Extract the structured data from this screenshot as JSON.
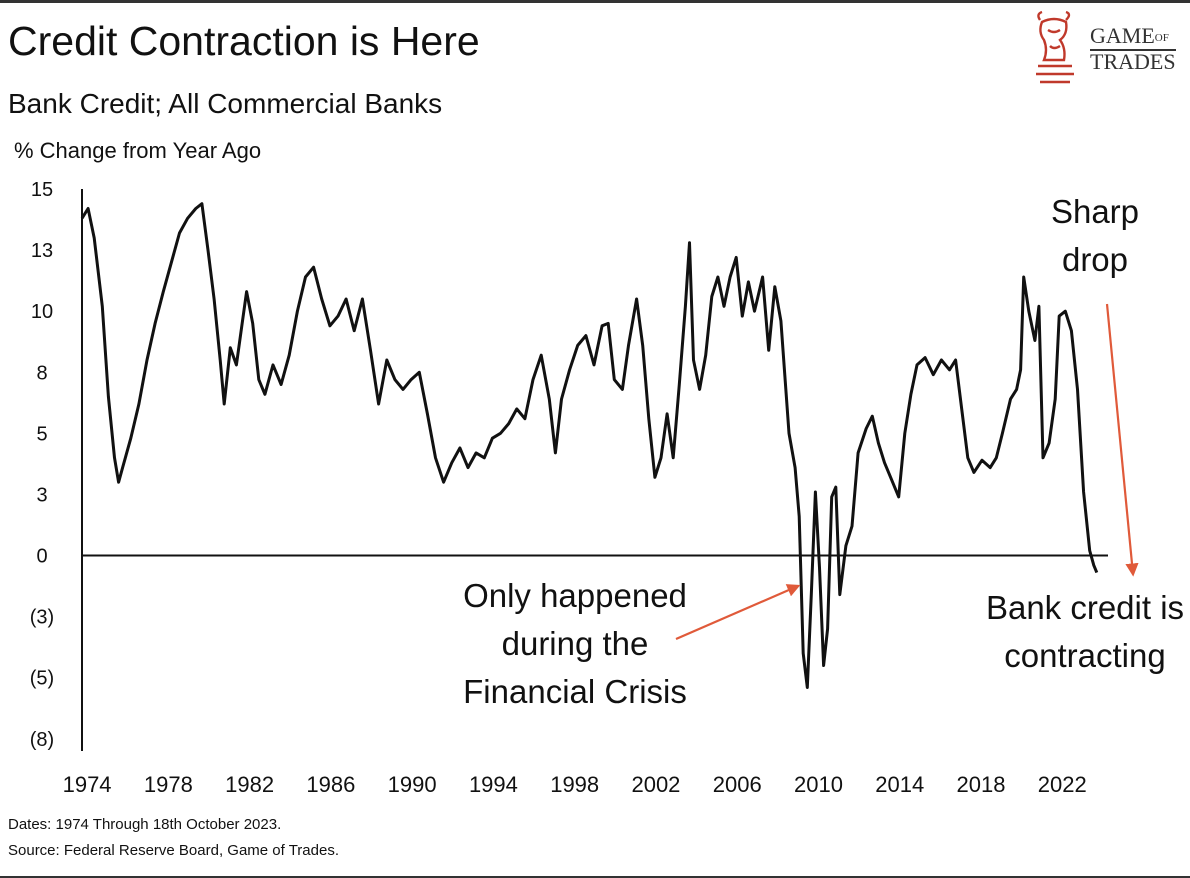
{
  "logo": {
    "line1": "GAME",
    "of": "OF",
    "line2": "TRADES",
    "color": "#c0392b"
  },
  "notes": {
    "dates": "Dates: 1974 Through 18th October 2023.",
    "source": "Source: Federal Reserve Board, Game of Trades."
  },
  "annotations": {
    "crisis": [
      "Only happened",
      "during the",
      "Financial Crisis"
    ],
    "drop": [
      "Sharp",
      "drop"
    ],
    "contract": [
      "Bank credit is",
      "contracting"
    ],
    "arrow_color": "#e05a3a"
  },
  "chart_data": {
    "type": "line",
    "title": "Credit Contraction is Here",
    "subtitle": "Bank Credit; All Commercial Banks",
    "ylabel": "% Change from Year Ago",
    "xlabel": "",
    "ylim": [
      -8,
      15
    ],
    "xlim": [
      1974,
      2024.5
    ],
    "yticks": [
      {
        "value": 15,
        "label": "15"
      },
      {
        "value": 12.5,
        "label": "13"
      },
      {
        "value": 10,
        "label": "10"
      },
      {
        "value": 7.5,
        "label": "8"
      },
      {
        "value": 5,
        "label": "5"
      },
      {
        "value": 2.5,
        "label": "3"
      },
      {
        "value": 0,
        "label": "0"
      },
      {
        "value": -2.5,
        "label": "(3)"
      },
      {
        "value": -5,
        "label": "(5)"
      },
      {
        "value": -7.5,
        "label": "(8)"
      }
    ],
    "xticks": [
      1974,
      1978,
      1982,
      1986,
      1990,
      1994,
      1998,
      2002,
      2006,
      2010,
      2014,
      2018,
      2022
    ],
    "grid": false,
    "series": [
      {
        "color": "#111111",
        "points": [
          [
            1974.0,
            13.8
          ],
          [
            1974.3,
            14.2
          ],
          [
            1974.6,
            13.0
          ],
          [
            1975.0,
            10.2
          ],
          [
            1975.3,
            6.5
          ],
          [
            1975.6,
            4.0
          ],
          [
            1975.8,
            3.0
          ],
          [
            1976.0,
            3.6
          ],
          [
            1976.4,
            4.8
          ],
          [
            1976.8,
            6.2
          ],
          [
            1977.2,
            8.0
          ],
          [
            1977.6,
            9.5
          ],
          [
            1978.0,
            10.8
          ],
          [
            1978.4,
            12.0
          ],
          [
            1978.8,
            13.2
          ],
          [
            1979.2,
            13.8
          ],
          [
            1979.6,
            14.2
          ],
          [
            1979.9,
            14.4
          ],
          [
            1980.2,
            12.5
          ],
          [
            1980.5,
            10.5
          ],
          [
            1980.8,
            8.0
          ],
          [
            1981.0,
            6.2
          ],
          [
            1981.3,
            8.5
          ],
          [
            1981.6,
            7.8
          ],
          [
            1981.9,
            9.6
          ],
          [
            1982.1,
            10.8
          ],
          [
            1982.4,
            9.5
          ],
          [
            1982.7,
            7.2
          ],
          [
            1983.0,
            6.6
          ],
          [
            1983.4,
            7.8
          ],
          [
            1983.8,
            7.0
          ],
          [
            1984.2,
            8.2
          ],
          [
            1984.6,
            10.0
          ],
          [
            1985.0,
            11.4
          ],
          [
            1985.4,
            11.8
          ],
          [
            1985.8,
            10.5
          ],
          [
            1986.2,
            9.4
          ],
          [
            1986.6,
            9.8
          ],
          [
            1987.0,
            10.5
          ],
          [
            1987.4,
            9.2
          ],
          [
            1987.8,
            10.5
          ],
          [
            1988.2,
            8.4
          ],
          [
            1988.6,
            6.2
          ],
          [
            1989.0,
            8.0
          ],
          [
            1989.4,
            7.2
          ],
          [
            1989.8,
            6.8
          ],
          [
            1990.2,
            7.2
          ],
          [
            1990.6,
            7.5
          ],
          [
            1991.0,
            5.8
          ],
          [
            1991.4,
            4.0
          ],
          [
            1991.8,
            3.0
          ],
          [
            1992.2,
            3.8
          ],
          [
            1992.6,
            4.4
          ],
          [
            1993.0,
            3.6
          ],
          [
            1993.4,
            4.2
          ],
          [
            1993.8,
            4.0
          ],
          [
            1994.2,
            4.8
          ],
          [
            1994.6,
            5.0
          ],
          [
            1995.0,
            5.4
          ],
          [
            1995.4,
            6.0
          ],
          [
            1995.8,
            5.6
          ],
          [
            1996.2,
            7.2
          ],
          [
            1996.6,
            8.2
          ],
          [
            1997.0,
            6.4
          ],
          [
            1997.3,
            4.2
          ],
          [
            1997.6,
            6.4
          ],
          [
            1998.0,
            7.6
          ],
          [
            1998.4,
            8.6
          ],
          [
            1998.8,
            9.0
          ],
          [
            1999.2,
            7.8
          ],
          [
            1999.6,
            9.4
          ],
          [
            1999.9,
            9.5
          ],
          [
            2000.2,
            7.2
          ],
          [
            2000.6,
            6.8
          ],
          [
            2000.9,
            8.6
          ],
          [
            2001.3,
            10.5
          ],
          [
            2001.6,
            8.6
          ],
          [
            2001.9,
            5.6
          ],
          [
            2002.2,
            3.2
          ],
          [
            2002.5,
            4.0
          ],
          [
            2002.8,
            5.8
          ],
          [
            2003.1,
            4.0
          ],
          [
            2003.4,
            7.0
          ],
          [
            2003.7,
            10.2
          ],
          [
            2003.9,
            12.8
          ],
          [
            2004.1,
            8.0
          ],
          [
            2004.4,
            6.8
          ],
          [
            2004.7,
            8.2
          ],
          [
            2005.0,
            10.6
          ],
          [
            2005.3,
            11.4
          ],
          [
            2005.6,
            10.2
          ],
          [
            2005.9,
            11.4
          ],
          [
            2006.2,
            12.2
          ],
          [
            2006.5,
            9.8
          ],
          [
            2006.8,
            11.2
          ],
          [
            2007.1,
            10.0
          ],
          [
            2007.5,
            11.4
          ],
          [
            2007.8,
            8.4
          ],
          [
            2008.1,
            11.0
          ],
          [
            2008.4,
            9.6
          ],
          [
            2008.8,
            5.0
          ],
          [
            2009.1,
            3.6
          ],
          [
            2009.3,
            1.6
          ],
          [
            2009.5,
            -4.0
          ],
          [
            2009.7,
            -5.4
          ],
          [
            2009.9,
            -1.5
          ],
          [
            2010.1,
            2.6
          ],
          [
            2010.3,
            -0.5
          ],
          [
            2010.5,
            -4.5
          ],
          [
            2010.7,
            -3.0
          ],
          [
            2010.9,
            2.4
          ],
          [
            2011.1,
            2.8
          ],
          [
            2011.3,
            -1.6
          ],
          [
            2011.6,
            0.4
          ],
          [
            2011.9,
            1.2
          ],
          [
            2012.2,
            4.2
          ],
          [
            2012.6,
            5.2
          ],
          [
            2012.9,
            5.7
          ],
          [
            2013.2,
            4.6
          ],
          [
            2013.5,
            3.8
          ],
          [
            2013.8,
            3.2
          ],
          [
            2014.2,
            2.4
          ],
          [
            2014.5,
            5.0
          ],
          [
            2014.8,
            6.6
          ],
          [
            2015.1,
            7.8
          ],
          [
            2015.5,
            8.1
          ],
          [
            2015.9,
            7.4
          ],
          [
            2016.3,
            8.0
          ],
          [
            2016.7,
            7.6
          ],
          [
            2017.0,
            8.0
          ],
          [
            2017.3,
            6.0
          ],
          [
            2017.6,
            4.0
          ],
          [
            2017.9,
            3.4
          ],
          [
            2018.3,
            3.9
          ],
          [
            2018.7,
            3.6
          ],
          [
            2019.0,
            4.0
          ],
          [
            2019.3,
            5.0
          ],
          [
            2019.7,
            6.4
          ],
          [
            2020.0,
            6.8
          ],
          [
            2020.2,
            7.6
          ],
          [
            2020.35,
            11.4
          ],
          [
            2020.6,
            10.0
          ],
          [
            2020.9,
            8.8
          ],
          [
            2021.1,
            10.2
          ],
          [
            2021.3,
            4.0
          ],
          [
            2021.6,
            4.6
          ],
          [
            2021.9,
            6.4
          ],
          [
            2022.1,
            9.8
          ],
          [
            2022.4,
            10.0
          ],
          [
            2022.7,
            9.2
          ],
          [
            2023.0,
            6.8
          ],
          [
            2023.3,
            2.6
          ],
          [
            2023.6,
            0.2
          ],
          [
            2023.8,
            -0.4
          ],
          [
            2023.95,
            -0.7
          ]
        ]
      }
    ]
  }
}
